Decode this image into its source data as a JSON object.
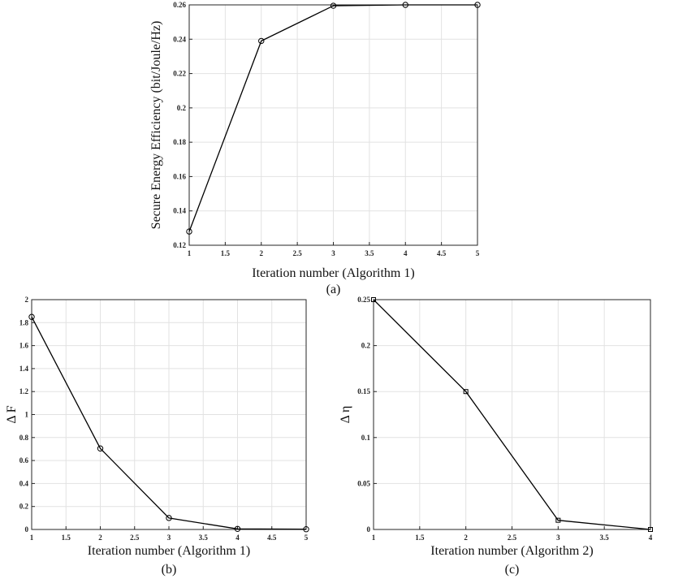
{
  "chart_data": [
    {
      "type": "line",
      "panel_label": "(a)",
      "xlabel": "Iteration number (Algorithm 1)",
      "ylabel": "Secure Energy Efficiency (bit/Joule/Hz)",
      "x": [
        1,
        2,
        3,
        4,
        5
      ],
      "values": [
        0.128,
        0.239,
        0.2595,
        0.26,
        0.26
      ],
      "marker": "circle",
      "xlim": [
        1,
        5
      ],
      "ylim": [
        0.12,
        0.26
      ],
      "xticks": [
        "1",
        "1.5",
        "2",
        "2.5",
        "3",
        "3.5",
        "4",
        "4.5",
        "5"
      ],
      "yticks": [
        "0.12",
        "0.14",
        "0.16",
        "0.18",
        "0.2",
        "0.22",
        "0.24",
        "0.26"
      ],
      "grid": true,
      "line_color": "#000000"
    },
    {
      "type": "line",
      "panel_label": "(b)",
      "xlabel": "Iteration number (Algorithm 1)",
      "ylabel": "Δ F",
      "x": [
        1,
        2,
        3,
        4,
        5
      ],
      "values": [
        1.85,
        0.705,
        0.1,
        0.005,
        0.002
      ],
      "marker": "circle",
      "xlim": [
        1,
        5
      ],
      "ylim": [
        0,
        2
      ],
      "xticks": [
        "1",
        "1.5",
        "2",
        "2.5",
        "3",
        "3.5",
        "4",
        "4.5",
        "5"
      ],
      "yticks": [
        "0",
        "0.2",
        "0.4",
        "0.6",
        "0.8",
        "1",
        "1.2",
        "1.4",
        "1.6",
        "1.8",
        "2"
      ],
      "grid": true,
      "line_color": "#000000"
    },
    {
      "type": "line",
      "panel_label": "(c)",
      "xlabel": "Iteration number (Algorithm 2)",
      "ylabel": "Δ η",
      "x": [
        1,
        2,
        3,
        4
      ],
      "values": [
        0.25,
        0.15,
        0.01,
        0.0
      ],
      "marker": "square",
      "xlim": [
        1,
        4
      ],
      "ylim": [
        0,
        0.25
      ],
      "xticks": [
        "1",
        "1.5",
        "2",
        "2.5",
        "3",
        "3.5",
        "4"
      ],
      "yticks": [
        "0",
        "0.05",
        "0.1",
        "0.15",
        "0.2",
        "0.25"
      ],
      "grid": true,
      "line_color": "#000000"
    }
  ]
}
